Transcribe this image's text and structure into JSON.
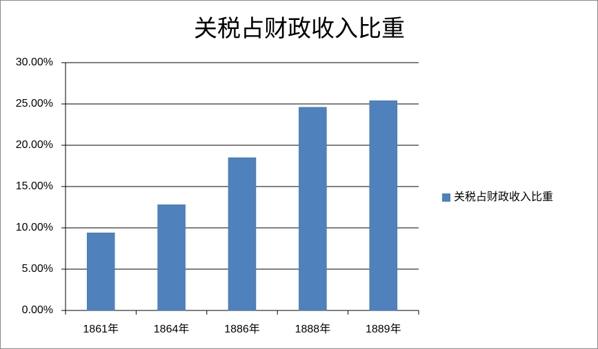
{
  "chart_data": {
    "type": "bar",
    "title": "关税占财政收入比重",
    "categories": [
      "1861年",
      "1864年",
      "1886年",
      "1888年",
      "1889年"
    ],
    "series": [
      {
        "name": "关税占财政收入比重",
        "color": "#4f81bd",
        "values": [
          9.4,
          12.8,
          18.5,
          24.6,
          25.4
        ]
      }
    ],
    "ylim": [
      0,
      30
    ],
    "yticks": [
      {
        "value": 0,
        "label": "0.00%"
      },
      {
        "value": 5,
        "label": "5.00%"
      },
      {
        "value": 10,
        "label": "10.00%"
      },
      {
        "value": 15,
        "label": "15.00%"
      },
      {
        "value": 20,
        "label": "20.00%"
      },
      {
        "value": 25,
        "label": "25.00%"
      },
      {
        "value": 30,
        "label": "30.00%"
      }
    ],
    "grid": true,
    "legend": "right"
  }
}
